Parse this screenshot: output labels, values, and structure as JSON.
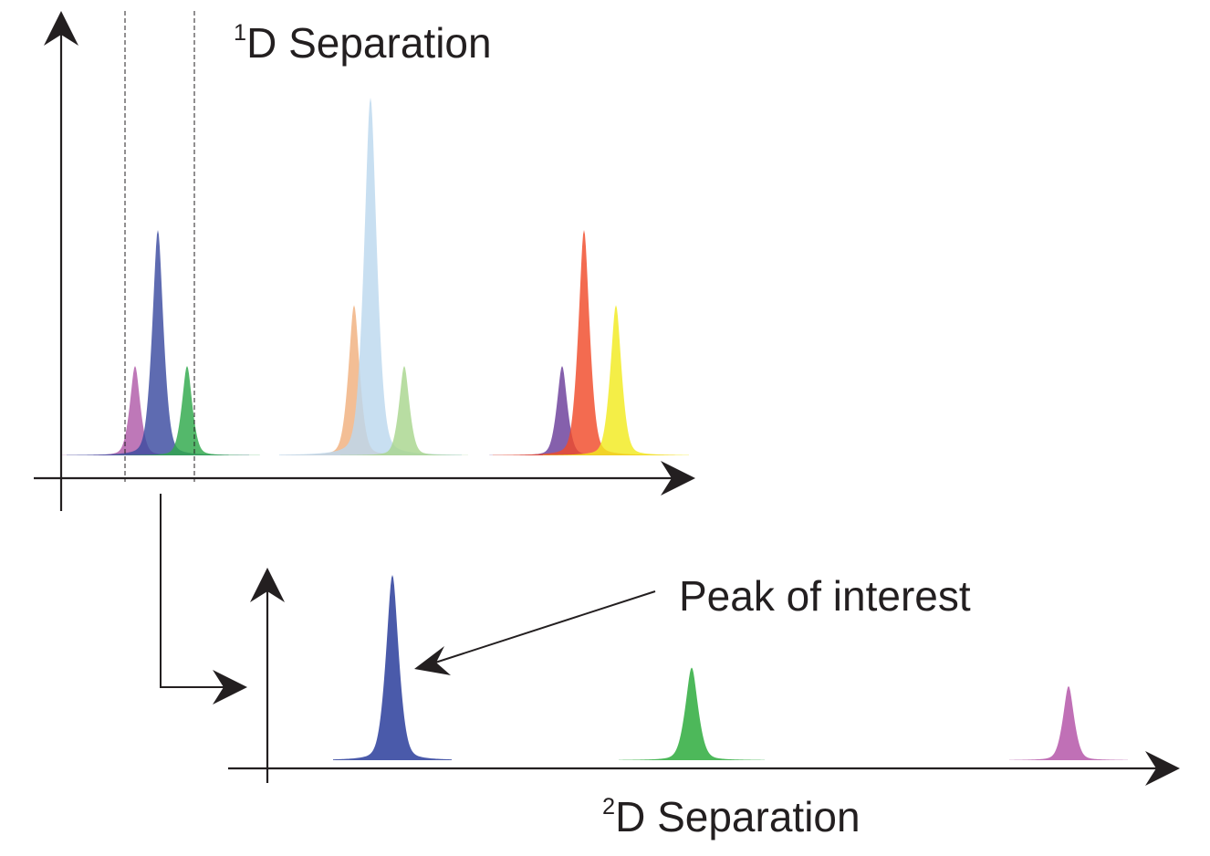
{
  "title_1d": {
    "sup": "1",
    "text": "D Separation"
  },
  "title_2d": {
    "sup": "2",
    "text": "D Separation"
  },
  "annotation": {
    "text": "Peak of interest"
  },
  "colors": {
    "axis": "#231f20",
    "magenta": "#b05aa8",
    "dark_blue": "#3a4ba0",
    "green": "#2ea84a",
    "peach": "#f0b07e",
    "light_blue": "#bcd8ee",
    "light_green": "#a8d68e",
    "purple": "#6a3d9a",
    "red": "#f04a2a",
    "yellow": "#f2ea1e",
    "blue_2d": "#4a5aaa",
    "green_2d": "#4db85a",
    "magenta_2d": "#c070b6"
  },
  "peaks_1d": [
    {
      "name": "magenta",
      "color": "magenta",
      "height": 0.25
    },
    {
      "name": "dark-blue",
      "color": "dark_blue",
      "height": 0.63
    },
    {
      "name": "green",
      "color": "green",
      "height": 0.25
    },
    {
      "name": "peach",
      "color": "peach",
      "height": 0.42
    },
    {
      "name": "light-blue",
      "color": "light_blue",
      "height": 1.0
    },
    {
      "name": "light-green",
      "color": "light_green",
      "height": 0.25
    },
    {
      "name": "purple",
      "color": "purple",
      "height": 0.25
    },
    {
      "name": "red",
      "color": "red",
      "height": 0.63
    },
    {
      "name": "yellow",
      "color": "yellow",
      "height": 0.42
    }
  ],
  "peaks_2d": [
    {
      "name": "blue",
      "color": "blue_2d",
      "height": 1.0
    },
    {
      "name": "green",
      "color": "green_2d",
      "height": 0.5
    },
    {
      "name": "magenta",
      "color": "magenta_2d",
      "height": 0.4
    }
  ]
}
